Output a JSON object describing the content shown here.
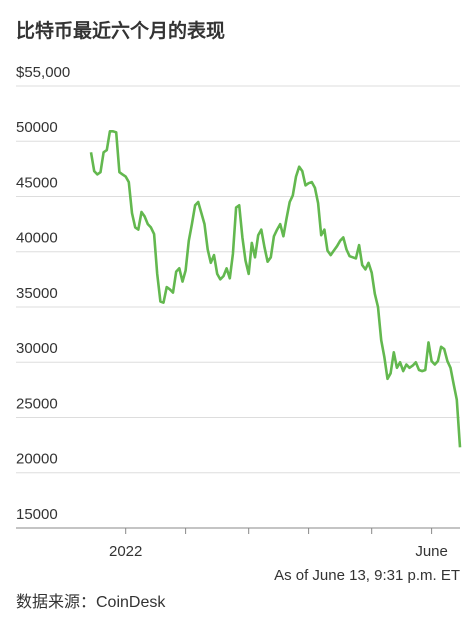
{
  "chart_data": {
    "type": "line",
    "title": "比特币最近六个月的表现",
    "annotation": "As of June 13, 9:31 p.m. ET",
    "source": "数据来源：CoinDesk",
    "categories": [
      null,
      null,
      null,
      null,
      null,
      null,
      null,
      null,
      null,
      null,
      null,
      "2022",
      null,
      null,
      null,
      null,
      null,
      null,
      null,
      null,
      null,
      null,
      null,
      null,
      null,
      null,
      null,
      null,
      null,
      null,
      null,
      null,
      null,
      null,
      null,
      null,
      null,
      null,
      null,
      null,
      null,
      null,
      null,
      null,
      null,
      null,
      null,
      null,
      null,
      null,
      null,
      null,
      null,
      null,
      null,
      null,
      null,
      null,
      null,
      null,
      null,
      null,
      null,
      null,
      null,
      null,
      null,
      null,
      null,
      null,
      null,
      null,
      null,
      null,
      null,
      null,
      null,
      null,
      null,
      null,
      null,
      null,
      null,
      null,
      null,
      null,
      null,
      null,
      null,
      null,
      null,
      null,
      null,
      null,
      null,
      null,
      null,
      null,
      null,
      null,
      null,
      null,
      null,
      null,
      null,
      null,
      null,
      null,
      "June",
      null,
      null,
      null,
      null,
      null,
      null,
      null,
      null,
      null
    ],
    "values": [
      49000,
      47300,
      47000,
      47200,
      49000,
      49200,
      50900,
      50900,
      50800,
      47200,
      47000,
      46800,
      46300,
      43500,
      42200,
      42000,
      43600,
      43200,
      42500,
      42200,
      41600,
      38000,
      35500,
      35400,
      36800,
      36600,
      36300,
      38200,
      38500,
      37300,
      38300,
      41000,
      42500,
      44200,
      44500,
      43500,
      42500,
      40200,
      39000,
      39700,
      38000,
      37500,
      37800,
      38500,
      37600,
      39800,
      44000,
      44200,
      41300,
      39200,
      38000,
      40800,
      39500,
      41500,
      42000,
      40400,
      39100,
      39500,
      41400,
      42000,
      42500,
      41400,
      43000,
      44500,
      45100,
      46800,
      47700,
      47300,
      46000,
      46200,
      46300,
      45800,
      44400,
      41500,
      42000,
      40100,
      39700,
      40100,
      40500,
      41000,
      41300,
      40200,
      39600,
      39500,
      39400,
      40600,
      38800,
      38400,
      39000,
      38100,
      36200,
      35000,
      32000,
      30500,
      28500,
      29000,
      30900,
      29500,
      30000,
      29200,
      29800,
      29500,
      29700,
      30000,
      29300,
      29200,
      29300,
      31800,
      30100,
      29800,
      30100,
      31400,
      31200,
      30100,
      29500,
      28000,
      26600,
      22300
    ],
    "color": "#63b84f",
    "xticks": [
      11,
      30,
      50,
      69,
      89,
      108
    ],
    "ylim": [
      15000,
      55000
    ],
    "yticks": [
      15000,
      20000,
      25000,
      30000,
      35000,
      40000,
      45000,
      50000,
      {
        "value": 55000,
        "label": "$55,000"
      }
    ],
    "ytick_labels": [
      "15,000",
      "20,000",
      "25,000",
      "30,000",
      "35,000",
      "40,000",
      "45,000",
      "50,000"
    ],
    "grid": true
  }
}
